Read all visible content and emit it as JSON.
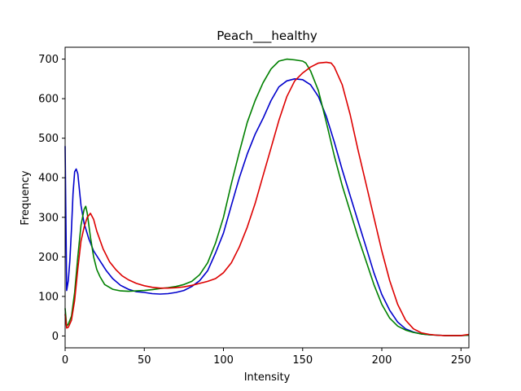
{
  "chart_data": {
    "type": "line",
    "title": "Peach___healthy",
    "xlabel": "Intensity",
    "ylabel": "Frequency",
    "xlim": [
      0,
      255
    ],
    "ylim": [
      -30,
      730
    ],
    "xticks": [
      0,
      50,
      100,
      150,
      200,
      250
    ],
    "yticks": [
      0,
      100,
      200,
      300,
      400,
      500,
      600,
      700
    ],
    "grid": false,
    "legend": "none",
    "series": [
      {
        "color": "#0000cc",
        "x": [
          0,
          1,
          2,
          3,
          4,
          5,
          6,
          7,
          8,
          10,
          12,
          15,
          18,
          22,
          26,
          30,
          35,
          40,
          45,
          50,
          55,
          60,
          65,
          70,
          75,
          80,
          85,
          90,
          95,
          100,
          105,
          110,
          115,
          120,
          125,
          130,
          135,
          140,
          145,
          150,
          155,
          160,
          165,
          170,
          175,
          180,
          185,
          190,
          195,
          200,
          205,
          210,
          215,
          220,
          225,
          230,
          235,
          240,
          245,
          250,
          255
        ],
        "y": [
          480,
          115,
          140,
          190,
          270,
          360,
          415,
          422,
          410,
          330,
          285,
          245,
          215,
          190,
          165,
          145,
          128,
          118,
          112,
          110,
          107,
          106,
          107,
          110,
          115,
          125,
          140,
          165,
          210,
          260,
          330,
          400,
          460,
          510,
          550,
          595,
          630,
          645,
          650,
          648,
          635,
          605,
          555,
          490,
          420,
          355,
          290,
          225,
          160,
          105,
          65,
          35,
          18,
          10,
          5,
          3,
          2,
          1,
          1,
          1,
          2
        ]
      },
      {
        "color": "#008000",
        "x": [
          0,
          1,
          2,
          4,
          6,
          8,
          10,
          12,
          13,
          14,
          16,
          18,
          20,
          22,
          25,
          30,
          35,
          40,
          45,
          50,
          55,
          60,
          65,
          70,
          75,
          80,
          85,
          90,
          95,
          100,
          105,
          110,
          115,
          120,
          125,
          130,
          135,
          140,
          145,
          150,
          152,
          155,
          160,
          165,
          170,
          175,
          180,
          185,
          190,
          195,
          200,
          205,
          210,
          215,
          220,
          225,
          230,
          235,
          240,
          245,
          250,
          255
        ],
        "y": [
          70,
          25,
          30,
          50,
          110,
          200,
          280,
          320,
          328,
          310,
          250,
          200,
          168,
          150,
          130,
          118,
          114,
          113,
          114,
          115,
          117,
          120,
          122,
          125,
          130,
          138,
          155,
          185,
          235,
          300,
          385,
          465,
          540,
          595,
          640,
          675,
          695,
          700,
          698,
          695,
          690,
          670,
          620,
          540,
          455,
          380,
          315,
          250,
          190,
          130,
          80,
          45,
          25,
          15,
          9,
          5,
          3,
          2,
          1,
          1,
          1,
          2
        ]
      },
      {
        "color": "#dd0000",
        "x": [
          0,
          1,
          2,
          4,
          6,
          8,
          10,
          12,
          14,
          16,
          18,
          20,
          24,
          28,
          32,
          36,
          40,
          45,
          50,
          55,
          60,
          65,
          70,
          75,
          80,
          85,
          90,
          95,
          100,
          105,
          110,
          115,
          120,
          125,
          130,
          135,
          140,
          145,
          150,
          155,
          160,
          165,
          168,
          170,
          175,
          180,
          185,
          190,
          195,
          200,
          205,
          210,
          215,
          220,
          225,
          230,
          235,
          240,
          245,
          250,
          255
        ],
        "y": [
          55,
          20,
          22,
          40,
          90,
          170,
          240,
          275,
          300,
          310,
          295,
          265,
          220,
          188,
          168,
          152,
          142,
          133,
          127,
          123,
          121,
          121,
          122,
          124,
          128,
          133,
          138,
          145,
          160,
          185,
          225,
          275,
          335,
          405,
          475,
          545,
          605,
          645,
          665,
          680,
          690,
          692,
          690,
          680,
          635,
          560,
          470,
          385,
          300,
          215,
          140,
          80,
          40,
          18,
          8,
          4,
          2,
          1,
          1,
          1,
          4
        ]
      }
    ]
  }
}
